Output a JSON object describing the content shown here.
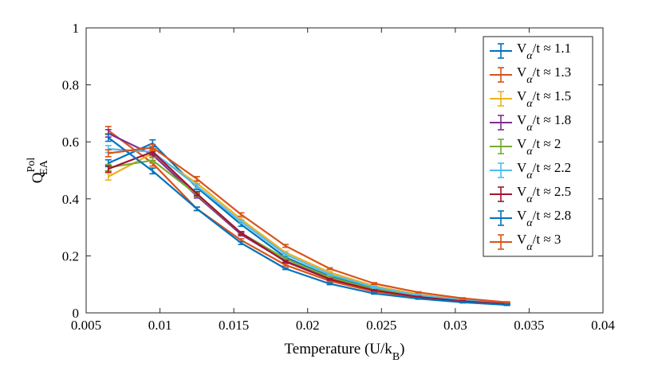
{
  "chart_data": {
    "type": "line",
    "title": "",
    "xlabel": "Temperature (U/k_B)",
    "ylabel": "Q_EA^Pol",
    "xlim": [
      0.005,
      0.04
    ],
    "ylim": [
      0,
      1
    ],
    "xticks": [
      0.005,
      0.01,
      0.015,
      0.02,
      0.025,
      0.03,
      0.035,
      0.04
    ],
    "yticks": [
      0,
      0.2,
      0.4,
      0.6,
      0.8,
      1
    ],
    "xtick_labels": [
      "0.005",
      "0.01",
      "0.015",
      "0.02",
      "0.025",
      "0.03",
      "0.035",
      "0.04"
    ],
    "ytick_labels": [
      "0",
      "0.2",
      "0.4",
      "0.6",
      "0.8",
      "1"
    ],
    "legend_position": "top-right",
    "x": [
      0.0065,
      0.0095,
      0.0125,
      0.0155,
      0.0185,
      0.0215,
      0.0245,
      0.0275,
      0.0305,
      0.0335
    ],
    "series": [
      {
        "name": "Vα/t ≈ 1.1",
        "label_prefix": "V",
        "label_sub": "α",
        "label_suffix": "/t ≈ 1.1",
        "color": "#0072BD",
        "values": [
          0.525,
          0.595,
          0.44,
          0.31,
          0.195,
          0.128,
          0.085,
          0.06,
          0.043,
          0.032
        ],
        "errors": [
          0.012,
          0.012,
          0.008,
          0.006,
          0.004,
          0.003,
          0.003,
          0.002,
          0.002,
          0.002
        ]
      },
      {
        "name": "Vα/t ≈ 1.3",
        "label_prefix": "V",
        "label_sub": "α",
        "label_suffix": "/t ≈ 1.3",
        "color": "#D95319",
        "values": [
          0.64,
          0.525,
          0.365,
          0.255,
          0.168,
          0.112,
          0.075,
          0.055,
          0.04,
          0.03
        ],
        "errors": [
          0.014,
          0.01,
          0.006,
          0.005,
          0.004,
          0.003,
          0.002,
          0.002,
          0.002,
          0.002
        ]
      },
      {
        "name": "Vα/t ≈ 1.5",
        "label_prefix": "V",
        "label_sub": "α",
        "label_suffix": "/t ≈ 1.5",
        "color": "#EDB120",
        "values": [
          0.478,
          0.56,
          0.455,
          0.328,
          0.212,
          0.142,
          0.094,
          0.065,
          0.046,
          0.034
        ],
        "errors": [
          0.012,
          0.011,
          0.008,
          0.006,
          0.004,
          0.003,
          0.003,
          0.002,
          0.002,
          0.002
        ]
      },
      {
        "name": "Vα/t ≈ 1.8",
        "label_prefix": "V",
        "label_sub": "α",
        "label_suffix": "/t ≈ 1.8",
        "color": "#7E2F8E",
        "values": [
          0.63,
          0.555,
          0.41,
          0.275,
          0.182,
          0.12,
          0.08,
          0.057,
          0.042,
          0.031
        ],
        "errors": [
          0.013,
          0.01,
          0.007,
          0.005,
          0.004,
          0.003,
          0.002,
          0.002,
          0.002,
          0.002
        ]
      },
      {
        "name": "Vα/t ≈ 2",
        "label_prefix": "V",
        "label_sub": "α",
        "label_suffix": "/t ≈ 2",
        "color": "#77AC30",
        "values": [
          0.51,
          0.535,
          0.415,
          0.28,
          0.19,
          0.125,
          0.083,
          0.058,
          0.042,
          0.031
        ],
        "errors": [
          0.011,
          0.01,
          0.007,
          0.005,
          0.004,
          0.003,
          0.002,
          0.002,
          0.002,
          0.002
        ]
      },
      {
        "name": "Vα/t ≈ 2.2",
        "label_prefix": "V",
        "label_sub": "α",
        "label_suffix": "/t ≈ 2.2",
        "color": "#4DBEEE",
        "values": [
          0.575,
          0.565,
          0.445,
          0.32,
          0.205,
          0.135,
          0.09,
          0.062,
          0.045,
          0.033
        ],
        "errors": [
          0.012,
          0.011,
          0.008,
          0.006,
          0.004,
          0.003,
          0.003,
          0.002,
          0.002,
          0.002
        ]
      },
      {
        "name": "Vα/t ≈ 2.5",
        "label_prefix": "V",
        "label_sub": "α",
        "label_suffix": "/t ≈ 2.5",
        "color": "#A2142F",
        "values": [
          0.505,
          0.565,
          0.418,
          0.28,
          0.18,
          0.118,
          0.079,
          0.056,
          0.041,
          0.031
        ],
        "errors": [
          0.011,
          0.011,
          0.007,
          0.005,
          0.004,
          0.003,
          0.002,
          0.002,
          0.002,
          0.002
        ]
      },
      {
        "name": "Vα/t ≈ 2.8",
        "label_prefix": "V",
        "label_sub": "α",
        "label_suffix": "/t ≈ 2.8",
        "color": "#0072BD",
        "values": [
          0.615,
          0.498,
          0.365,
          0.245,
          0.155,
          0.102,
          0.068,
          0.05,
          0.037,
          0.028
        ],
        "errors": [
          0.013,
          0.01,
          0.006,
          0.005,
          0.003,
          0.003,
          0.002,
          0.002,
          0.002,
          0.002
        ]
      },
      {
        "name": "Vα/t ≈ 3",
        "label_prefix": "V",
        "label_sub": "α",
        "label_suffix": "/t ≈ 3",
        "color": "#D95319",
        "values": [
          0.56,
          0.58,
          0.47,
          0.345,
          0.235,
          0.155,
          0.103,
          0.072,
          0.051,
          0.037
        ],
        "errors": [
          0.012,
          0.011,
          0.008,
          0.006,
          0.005,
          0.003,
          0.003,
          0.002,
          0.002,
          0.002
        ]
      }
    ]
  }
}
